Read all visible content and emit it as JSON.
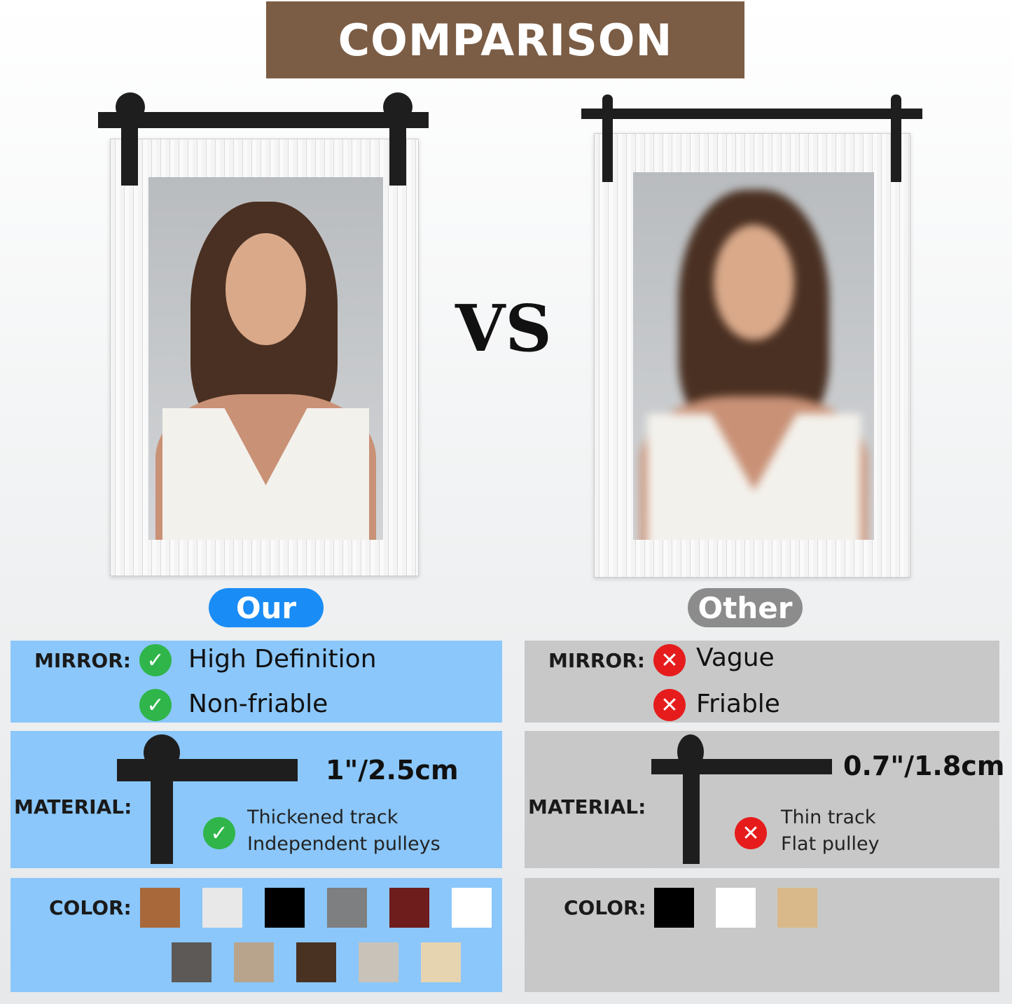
{
  "header": {
    "title": "COMPARISON"
  },
  "vs": "VS",
  "ours": {
    "badge": "Our",
    "badge_color": "#1a8cf5",
    "mirror": {
      "label": "MIRROR:",
      "features": [
        "High Definition",
        "Non-friable"
      ],
      "icon": "check-icon"
    },
    "material": {
      "label": "MATERIAL:",
      "thickness": "1\"/2.5cm",
      "features": [
        "Thickened track",
        "Independent pulleys"
      ],
      "icon": "check-icon"
    },
    "color": {
      "label": "COLOR:",
      "swatches": [
        "#a8683a",
        "#e8e8e8",
        "#000000",
        "#7d7f81",
        "#6e1c1c",
        "#ffffff",
        "#5c5957",
        "#b8a48c",
        "#4a3223",
        "#c9c2b8",
        "#e6d4b0"
      ]
    }
  },
  "others": {
    "badge": "Other",
    "badge_color": "#8c8c8c",
    "mirror": {
      "label": "MIRROR:",
      "features": [
        "Vague",
        "Friable"
      ],
      "icon": "x-icon"
    },
    "material": {
      "label": "MATERIAL:",
      "thickness": "0.7\"/1.8cm",
      "features": [
        "Thin track",
        "Flat pulley"
      ],
      "icon": "x-icon"
    },
    "color": {
      "label": "COLOR:",
      "swatches": [
        "#000000",
        "#ffffff",
        "#d9b98a"
      ]
    }
  },
  "colors": {
    "panel_ours": "#8bc7fa",
    "panel_other": "#c8c8c8",
    "header": "#7b5c44",
    "check": "#2fb54a",
    "cross": "#e61c1c"
  }
}
